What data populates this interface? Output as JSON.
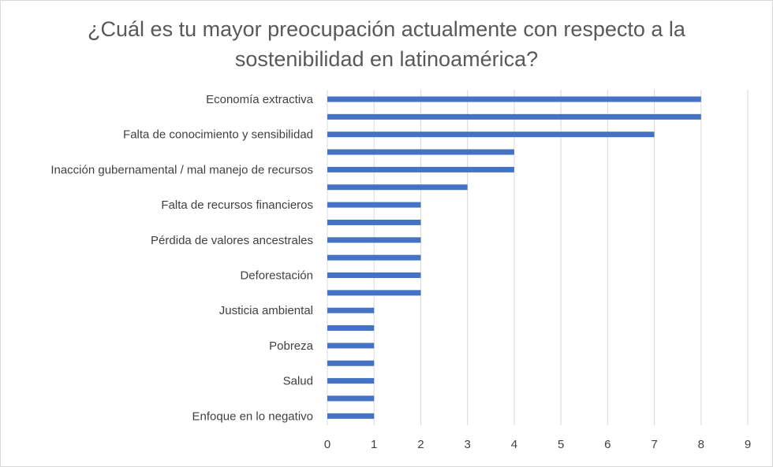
{
  "chart_data": {
    "type": "bar",
    "orientation": "horizontal",
    "title_lines": [
      "¿Cuál es tu mayor preocupación actualmente con respecto a la",
      "sostenibilidad en latinoamérica?"
    ],
    "categories": [
      "Economía extractiva",
      "",
      "Falta de conocimiento y sensibilidad",
      "",
      "Inacción gubernamental / mal manejo de recursos",
      "",
      "Falta de recursos financieros",
      "",
      "Pérdida de valores ancestrales",
      "",
      "Deforestación",
      "",
      "Justicia ambiental",
      "",
      "Pobreza",
      "",
      "Salud",
      "",
      "Enfoque en lo negativo"
    ],
    "values": [
      8,
      8,
      7,
      4,
      4,
      3,
      2,
      2,
      2,
      2,
      2,
      2,
      1,
      1,
      1,
      1,
      1,
      1,
      1
    ],
    "x_ticks": [
      "0",
      "1",
      "2",
      "3",
      "4",
      "5",
      "6",
      "7",
      "8",
      "9"
    ],
    "xlim": [
      0,
      9
    ],
    "grid": true,
    "legend": "none",
    "colors": {
      "bar": "#4472C4",
      "grid": "#d9d9d9",
      "title": "#595959",
      "text": "#404040"
    }
  }
}
